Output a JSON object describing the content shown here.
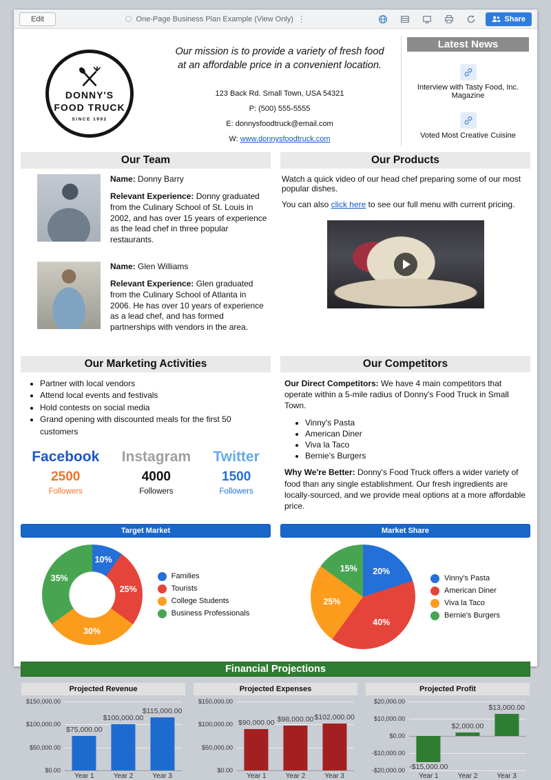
{
  "toolbar": {
    "edit_label": "Edit",
    "title": "One-Page Business Plan Example (View Only)",
    "share_label": "Share"
  },
  "header": {
    "logo_line1": "DONNY'S",
    "logo_line2": "FOOD TRUCK",
    "logo_since": "SINCE 1992",
    "mission": "Our mission is to provide a variety of fresh food at an affordable price in a convenient location.",
    "address": "123 Back Rd. Small Town, USA 54321",
    "phone": "P: (500) 555-5555",
    "email": "E: donnysfoodtruck@email.com",
    "website_prefix": "W: ",
    "website": "www.donnysfoodtruck.com"
  },
  "news": {
    "title": "Latest News",
    "items": [
      "Interview with Tasty Food, Inc. Magazine",
      "Voted Most Creative Cuisine"
    ]
  },
  "team": {
    "title": "Our Team",
    "name_label": "Name:",
    "exp_label": "Relevant Experience:",
    "members": [
      {
        "name": " Donny Barry",
        "experience": " Donny graduated from the Culinary School of St. Louis in 2002, and has over 15 years of experience as the lead chef in three popular restaurants."
      },
      {
        "name": " Glen Williams",
        "experience": " Glen graduated from the Culinary School of Atlanta in 2006. He has over 10 years of experience as a lead chef, and has formed partnerships with vendors in the area."
      }
    ]
  },
  "products": {
    "title": "Our Products",
    "line1": "Watch a quick video of our head chef preparing some of our most popular dishes.",
    "line2_pre": "You can also ",
    "line2_link": "click here",
    "line2_post": " to see our full menu with current pricing."
  },
  "marketing": {
    "title": "Our Marketing Activities",
    "bullets": [
      "Partner with local vendors",
      "Attend local events and festivals",
      "Hold contests on social media",
      "Grand opening with discounted meals for the first 50 customers"
    ],
    "social": [
      {
        "network": "Facebook",
        "count": "2500",
        "label": "Followers",
        "name_color": "#1d57c4",
        "count_color": "#f0732a"
      },
      {
        "network": "Instagram",
        "count": "4000",
        "label": "Followers",
        "name_color": "#9e9e9e",
        "count_color": "#111111"
      },
      {
        "network": "Twitter",
        "count": "1500",
        "label": "Followers",
        "name_color": "#62aae9",
        "count_color": "#2270d4"
      }
    ]
  },
  "competitors": {
    "title": "Our Competitors",
    "direct_label": "Our Direct Competitors:",
    "direct_text": " We have 4 main competitors that operate within a 5-mile radius of Donny's Food Truck in Small Town.",
    "bullets": [
      "Vinny's Pasta",
      "American Diner",
      "Viva la Taco",
      "Bernie's Burgers"
    ],
    "better_label": "Why We're Better:",
    "better_text": " Donny's Food Truck offers a wider variety of food than any single establishment. Our fresh ingredients are locally-sourced, and we provide meal options at a more affordable price."
  },
  "financial": {
    "title": "Financial Projections"
  },
  "chart_data": [
    {
      "id": "target_market",
      "type": "pie",
      "donut": true,
      "title": "Target Market",
      "labels": [
        "Families",
        "Tourists",
        "College Students",
        "Business Professionals"
      ],
      "values": [
        10,
        25,
        30,
        35
      ],
      "slice_labels": [
        "10%",
        "25%",
        "30%",
        "35%"
      ],
      "colors": [
        "#2470d8",
        "#e5443a",
        "#fb9c1c",
        "#47a552"
      ],
      "legend_position": "right"
    },
    {
      "id": "market_share",
      "type": "pie",
      "donut": false,
      "title": "Market Share",
      "labels": [
        "Vinny's Pasta",
        "American Diner",
        "Viva la Taco",
        "Bernie's Burgers"
      ],
      "values": [
        20,
        40,
        25,
        15
      ],
      "slice_labels": [
        "20%",
        "40%",
        "25%",
        "15%"
      ],
      "colors": [
        "#2470d8",
        "#e5443a",
        "#fb9c1c",
        "#47a552"
      ],
      "legend_position": "right"
    },
    {
      "id": "projected_revenue",
      "type": "bar",
      "title": "Projected Revenue",
      "categories": [
        "Year 1",
        "Year 2",
        "Year 3"
      ],
      "values": [
        75000,
        100000,
        115000
      ],
      "value_labels": [
        "$75,000.00",
        "$100,000.00",
        "$115,000.00"
      ],
      "bar_color": "#1e6bd0",
      "ylim": [
        0,
        150000
      ],
      "ytick_values": [
        0,
        50000,
        100000,
        150000
      ],
      "ytick_labels": [
        "$0.00",
        "$50,000.00",
        "$100,000.00",
        "$150,000.00"
      ]
    },
    {
      "id": "projected_expenses",
      "type": "bar",
      "title": "Projected Expenses",
      "categories": [
        "Year 1",
        "Year 2",
        "Year 3"
      ],
      "values": [
        90000,
        98000,
        102000
      ],
      "value_labels": [
        "$90,000.00",
        "$98,000.00",
        "$102,000.00"
      ],
      "bar_color": "#a32020",
      "ylim": [
        0,
        150000
      ],
      "ytick_values": [
        0,
        50000,
        100000,
        150000
      ],
      "ytick_labels": [
        "$0.00",
        "$50,000.00",
        "$100,000.00",
        "$150,000.00"
      ]
    },
    {
      "id": "projected_profit",
      "type": "bar",
      "title": "Projected Profit",
      "categories": [
        "Year 1",
        "Year 2",
        "Year 3"
      ],
      "values": [
        -15000,
        2000,
        13000
      ],
      "value_labels": [
        "-$15,000.00",
        "$2,000.00",
        "$13,000.00"
      ],
      "bar_color": "#2e7d32",
      "ylim": [
        -20000,
        20000
      ],
      "ytick_values": [
        -20000,
        -10000,
        0,
        10000,
        20000
      ],
      "ytick_labels": [
        "-$20,000.00",
        "-$10,000.00",
        "$0.00",
        "$10,000.00",
        "$20,000.00"
      ]
    }
  ]
}
